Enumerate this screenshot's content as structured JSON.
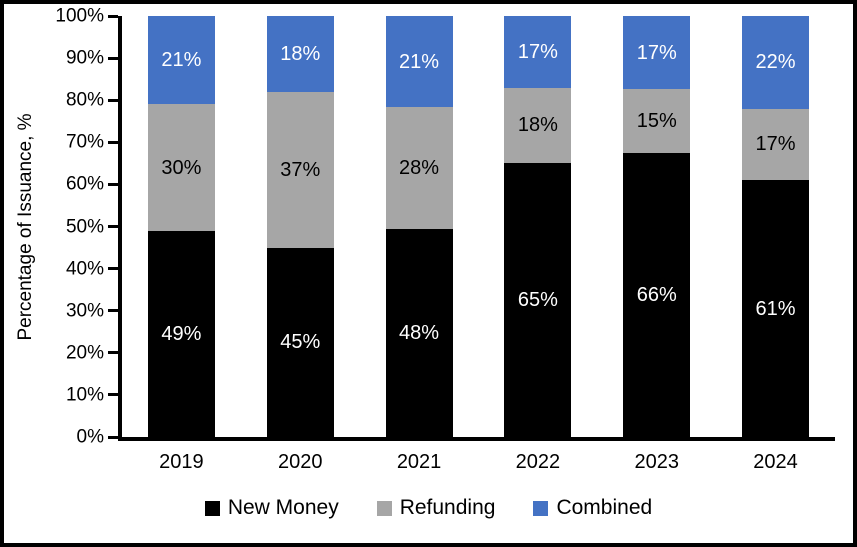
{
  "chart_data": {
    "type": "bar",
    "stacked": true,
    "percent_stacked": true,
    "title": "",
    "xlabel": "",
    "ylabel": "Percentage of Issuance, %",
    "categories": [
      "2019",
      "2020",
      "2021",
      "2022",
      "2023",
      "2024"
    ],
    "series": [
      {
        "name": "New Money",
        "color": "#000000",
        "label_color": "#ffffff",
        "values": [
          49,
          45,
          48,
          65,
          66,
          61
        ],
        "data_labels": [
          "49%",
          "45%",
          "48%",
          "65%",
          "66%",
          "61%"
        ]
      },
      {
        "name": "Refunding",
        "color": "#A6A6A6",
        "label_color": "#000000",
        "values": [
          30,
          37,
          28,
          18,
          15,
          17
        ],
        "data_labels": [
          "30%",
          "37%",
          "28%",
          "18%",
          "15%",
          "17%"
        ]
      },
      {
        "name": "Combined",
        "color": "#4472C4",
        "label_color": "#ffffff",
        "values": [
          21,
          18,
          21,
          17,
          17,
          22
        ],
        "data_labels": [
          "21%",
          "18%",
          "21%",
          "17%",
          "17%",
          "22%"
        ]
      }
    ],
    "data_label_suffix": "%",
    "y_axis": {
      "min": 0,
      "max": 100,
      "step": 10,
      "tick_suffix": "%",
      "tick_labels": [
        "0%",
        "10%",
        "20%",
        "30%",
        "40%",
        "50%",
        "60%",
        "70%",
        "80%",
        "90%",
        "100%"
      ]
    },
    "legend": {
      "position": "bottom",
      "entries": [
        "New Money",
        "Refunding",
        "Combined"
      ]
    },
    "grid": false,
    "axis_color": "#000000",
    "background_color": "#ffffff",
    "frame_border_color": "#000000"
  }
}
